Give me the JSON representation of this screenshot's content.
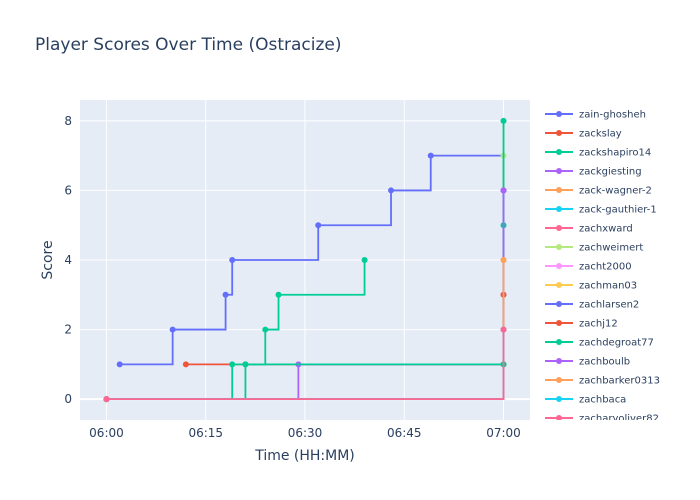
{
  "chart_data": {
    "type": "line",
    "title": "Player Scores Over Time (Ostracize)",
    "xlabel": "Time (HH:MM)",
    "ylabel": "Score",
    "x_tick_labels": [
      "06:00",
      "06:15",
      "06:30",
      "06:45",
      "07:00"
    ],
    "y_ticks": [
      0,
      2,
      4,
      6,
      8
    ],
    "xlim": [
      "05:56",
      "07:04"
    ],
    "ylim": [
      -0.6,
      8.6
    ],
    "line_shape": "step",
    "grid": true,
    "legend_position": "right",
    "series": [
      {
        "name": "zain-ghosheh",
        "color": "#636efa",
        "points": [
          [
            "06:02",
            1
          ],
          [
            "06:10",
            2
          ],
          [
            "06:18",
            3
          ],
          [
            "06:19",
            4
          ],
          [
            "06:32",
            5
          ],
          [
            "06:43",
            6
          ],
          [
            "06:49",
            7
          ],
          [
            "07:00",
            6
          ]
        ]
      },
      {
        "name": "zackslay",
        "color": "#ef553b",
        "points": [
          [
            "06:12",
            1
          ],
          [
            "07:00",
            1
          ]
        ]
      },
      {
        "name": "zackshapiro14",
        "color": "#00cc96",
        "points": [
          [
            "06:00",
            0
          ],
          [
            "06:21",
            1
          ],
          [
            "06:24",
            2
          ],
          [
            "06:26",
            3
          ],
          [
            "06:39",
            4
          ]
        ]
      },
      {
        "name": "zackgiesting",
        "color": "#ab63fa",
        "points": [
          [
            "06:00",
            0
          ],
          [
            "06:29",
            1
          ],
          [
            "07:00",
            6
          ]
        ]
      },
      {
        "name": "zack-wagner-2",
        "color": "#ffa15a",
        "points": [
          [
            "06:00",
            0
          ],
          [
            "07:00",
            4
          ]
        ]
      },
      {
        "name": "zack-gauthier-1",
        "color": "#19d3f3",
        "points": [
          [
            "06:00",
            0
          ],
          [
            "07:00",
            2
          ]
        ]
      },
      {
        "name": "zachxward",
        "color": "#ff6692",
        "points": [
          [
            "06:00",
            0
          ],
          [
            "07:00",
            2
          ]
        ]
      },
      {
        "name": "zachweimert",
        "color": "#b6e880",
        "points": [
          [
            "06:00",
            0
          ],
          [
            "07:00",
            1
          ],
          [
            "07:00",
            7
          ],
          [
            "07:00",
            8
          ]
        ]
      },
      {
        "name": "zacht2000",
        "color": "#ff97ff",
        "points": [
          [
            "06:00",
            0
          ],
          [
            "07:00",
            3
          ]
        ]
      },
      {
        "name": "zachman03",
        "color": "#fecb52",
        "points": [
          [
            "06:00",
            0
          ],
          [
            "07:00",
            4
          ]
        ]
      },
      {
        "name": "zachlarsen2",
        "color": "#636efa",
        "points": [
          [
            "06:00",
            0
          ],
          [
            "07:00",
            6
          ]
        ]
      },
      {
        "name": "zachj12",
        "color": "#ef553b",
        "points": [
          [
            "06:00",
            0
          ],
          [
            "07:00",
            3
          ]
        ]
      },
      {
        "name": "zachdegroat77",
        "color": "#00cc96",
        "points": [
          [
            "06:00",
            0
          ],
          [
            "06:19",
            1
          ],
          [
            "06:21",
            1
          ],
          [
            "07:00",
            1
          ],
          [
            "07:00",
            5
          ],
          [
            "07:00",
            8
          ]
        ]
      },
      {
        "name": "zachboulb",
        "color": "#ab63fa",
        "points": [
          [
            "06:00",
            0
          ],
          [
            "07:00",
            6
          ]
        ]
      },
      {
        "name": "zachbarker0313",
        "color": "#ffa15a",
        "points": [
          [
            "06:00",
            0
          ],
          [
            "07:00",
            4
          ]
        ]
      },
      {
        "name": "zachbaca",
        "color": "#19d3f3",
        "points": [
          [
            "06:00",
            0
          ],
          [
            "07:00",
            2
          ]
        ]
      },
      {
        "name": "zacharyoliver82",
        "color": "#ff6692",
        "points": [
          [
            "06:00",
            0
          ],
          [
            "07:00",
            2
          ]
        ]
      }
    ]
  }
}
